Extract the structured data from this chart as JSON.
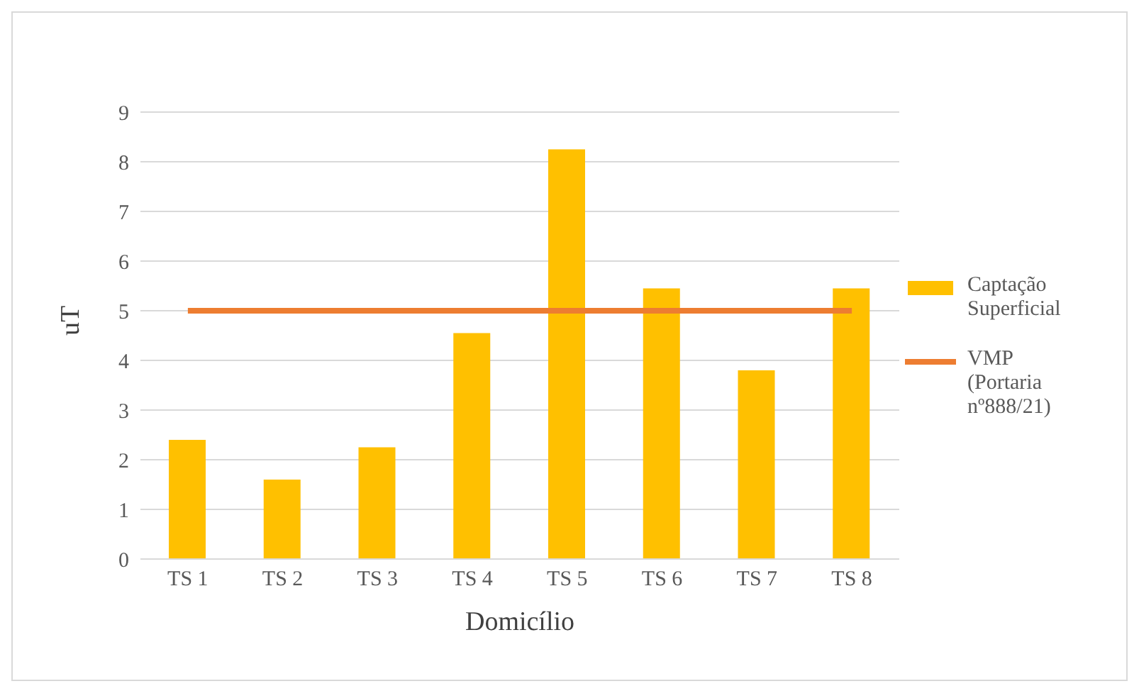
{
  "chart_data": {
    "type": "bar",
    "xlabel": "Domicílio",
    "ylabel": "uT",
    "categories": [
      "TS 1",
      "TS 2",
      "TS 3",
      "TS 4",
      "TS 5",
      "TS 6",
      "TS 7",
      "TS 8"
    ],
    "series": [
      {
        "name": "Captação Superficial",
        "color": "#ffc000",
        "values": [
          2.4,
          1.6,
          2.25,
          4.55,
          8.25,
          5.45,
          3.8,
          5.45
        ]
      },
      {
        "name": "VMP (Portaria nº888/21)",
        "type": "line",
        "color": "#ed7d31",
        "values": [
          5,
          5,
          5,
          5,
          5,
          5,
          5,
          5
        ]
      }
    ],
    "ylim": [
      0,
      9
    ],
    "yticks": [
      0,
      1,
      2,
      3,
      4,
      5,
      6,
      7,
      8,
      9
    ],
    "grid": "y",
    "legend": "right"
  }
}
